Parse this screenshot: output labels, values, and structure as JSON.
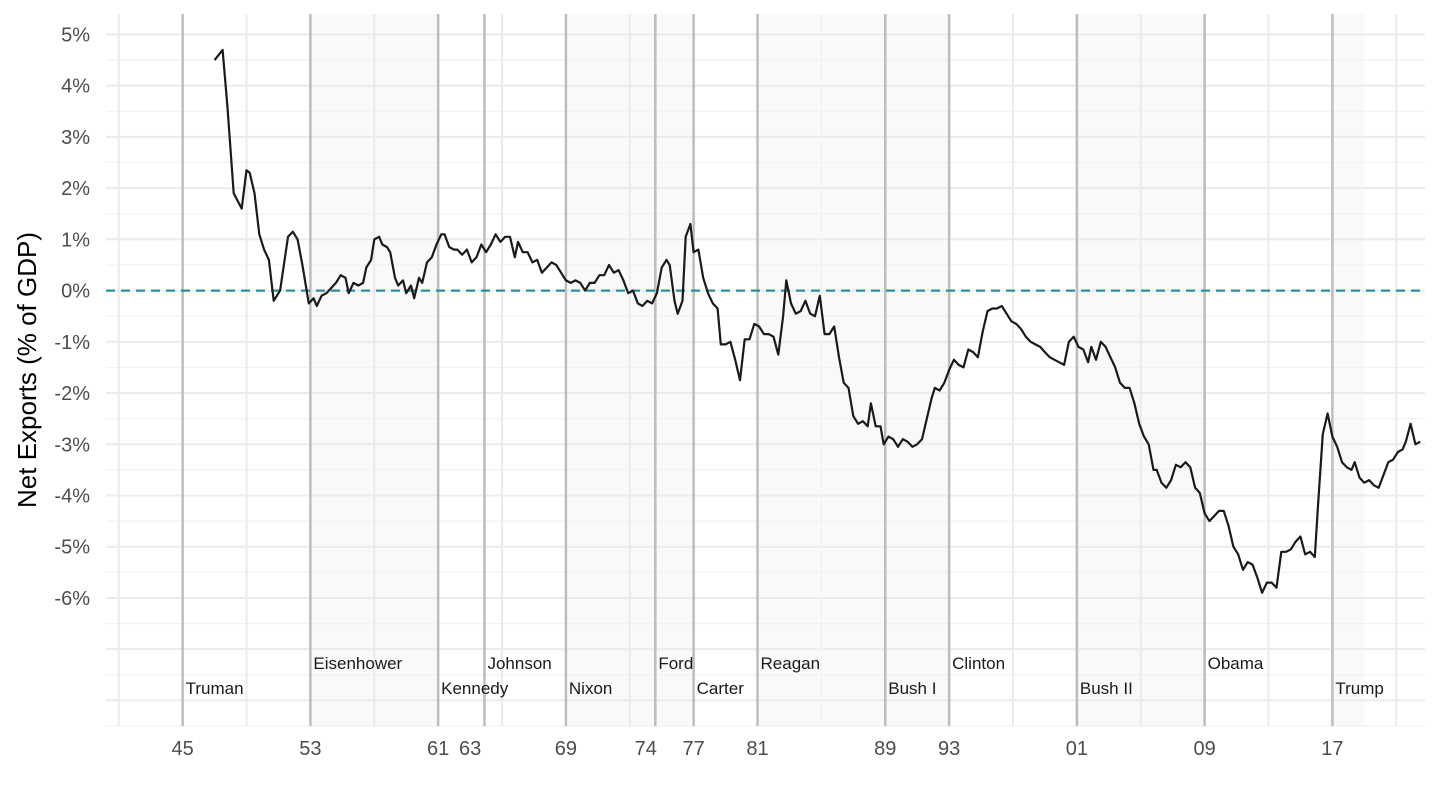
{
  "chart_data": {
    "type": "line",
    "title": "",
    "xlabel": "",
    "ylabel": "Net Exports (% of GDP)",
    "ylim": [
      -8.5,
      5.4
    ],
    "xlim": [
      1940.2,
      2022.8
    ],
    "y_ticks": [
      5,
      4,
      3,
      2,
      1,
      0,
      -1,
      -2,
      -3,
      -4,
      -5,
      -6
    ],
    "y_tick_labels": [
      "5%",
      "4%",
      "3%",
      "2%",
      "1%",
      "0%",
      "-1%",
      "-2%",
      "-3%",
      "-4%",
      "-5%",
      "-6%"
    ],
    "x_ticks": [
      1945,
      1953,
      1961,
      1963,
      1969,
      1974,
      1977,
      1981,
      1989,
      1993,
      2001,
      2009,
      2017
    ],
    "x_tick_labels": [
      "45",
      "53",
      "61",
      "63",
      "69",
      "74",
      "77",
      "81",
      "89",
      "93",
      "01",
      "09",
      "17"
    ],
    "reference_line": {
      "y": 0,
      "style": "dashed",
      "color": "#2a9296"
    },
    "grid": true,
    "presidencies": [
      {
        "name": "Truman",
        "start": 1945.0,
        "end": 1953.0,
        "shaded": false,
        "label_row": "low"
      },
      {
        "name": "Eisenhower",
        "start": 1953.0,
        "end": 1961.0,
        "shaded": true,
        "label_row": "high"
      },
      {
        "name": "Kennedy",
        "start": 1961.0,
        "end": 1963.9,
        "shaded": false,
        "label_row": "low"
      },
      {
        "name": "Johnson",
        "start": 1963.9,
        "end": 1969.0,
        "shaded": false,
        "label_row": "high"
      },
      {
        "name": "Nixon",
        "start": 1969.0,
        "end": 1974.6,
        "shaded": true,
        "label_row": "low"
      },
      {
        "name": "Ford",
        "start": 1974.6,
        "end": 1977.0,
        "shaded": true,
        "label_row": "high"
      },
      {
        "name": "Carter",
        "start": 1977.0,
        "end": 1981.0,
        "shaded": false,
        "label_row": "low"
      },
      {
        "name": "Reagan",
        "start": 1981.0,
        "end": 1989.0,
        "shaded": true,
        "label_row": "high"
      },
      {
        "name": "Bush I",
        "start": 1989.0,
        "end": 1993.0,
        "shaded": true,
        "label_row": "low"
      },
      {
        "name": "Clinton",
        "start": 1993.0,
        "end": 2001.0,
        "shaded": false,
        "label_row": "high"
      },
      {
        "name": "Bush II",
        "start": 2001.0,
        "end": 2009.0,
        "shaded": true,
        "label_row": "low"
      },
      {
        "name": "Obama",
        "start": 2009.0,
        "end": 2017.0,
        "shaded": false,
        "label_row": "high"
      },
      {
        "name": "Trump",
        "start": 2017.0,
        "end": 2019.0,
        "shaded": true,
        "label_row": "low"
      }
    ],
    "series": [
      {
        "color": "#1a1a1a",
        "points": [
          [
            1947.0,
            4.5
          ],
          [
            1947.5,
            4.7
          ],
          [
            1947.8,
            3.6
          ],
          [
            1948.2,
            1.9
          ],
          [
            1948.7,
            1.6
          ],
          [
            1949.0,
            2.35
          ],
          [
            1949.2,
            2.3
          ],
          [
            1949.5,
            1.9
          ],
          [
            1949.8,
            1.1
          ],
          [
            1950.1,
            0.8
          ],
          [
            1950.4,
            0.6
          ],
          [
            1950.7,
            -0.2
          ],
          [
            1951.1,
            0.0
          ],
          [
            1951.6,
            1.05
          ],
          [
            1951.9,
            1.15
          ],
          [
            1952.2,
            1.0
          ],
          [
            1952.5,
            0.5
          ],
          [
            1952.9,
            -0.25
          ],
          [
            1953.2,
            -0.15
          ],
          [
            1953.4,
            -0.3
          ],
          [
            1953.7,
            -0.1
          ],
          [
            1954.0,
            -0.05
          ],
          [
            1954.3,
            0.05
          ],
          [
            1954.6,
            0.15
          ],
          [
            1954.9,
            0.3
          ],
          [
            1955.2,
            0.25
          ],
          [
            1955.4,
            -0.05
          ],
          [
            1955.7,
            0.15
          ],
          [
            1956.0,
            0.1
          ],
          [
            1956.3,
            0.15
          ],
          [
            1956.5,
            0.45
          ],
          [
            1956.8,
            0.6
          ],
          [
            1957.0,
            1.0
          ],
          [
            1957.3,
            1.05
          ],
          [
            1957.5,
            0.9
          ],
          [
            1957.8,
            0.85
          ],
          [
            1958.0,
            0.75
          ],
          [
            1958.3,
            0.25
          ],
          [
            1958.5,
            0.1
          ],
          [
            1958.8,
            0.2
          ],
          [
            1959.0,
            -0.05
          ],
          [
            1959.3,
            0.1
          ],
          [
            1959.5,
            -0.15
          ],
          [
            1959.8,
            0.25
          ],
          [
            1960.0,
            0.15
          ],
          [
            1960.3,
            0.55
          ],
          [
            1960.6,
            0.65
          ],
          [
            1960.9,
            0.9
          ],
          [
            1961.2,
            1.1
          ],
          [
            1961.4,
            1.1
          ],
          [
            1961.7,
            0.85
          ],
          [
            1962.0,
            0.8
          ],
          [
            1962.2,
            0.8
          ],
          [
            1962.5,
            0.7
          ],
          [
            1962.8,
            0.8
          ],
          [
            1963.1,
            0.55
          ],
          [
            1963.4,
            0.65
          ],
          [
            1963.7,
            0.9
          ],
          [
            1964.0,
            0.75
          ],
          [
            1964.3,
            0.9
          ],
          [
            1964.6,
            1.1
          ],
          [
            1964.9,
            0.95
          ],
          [
            1965.2,
            1.05
          ],
          [
            1965.5,
            1.05
          ],
          [
            1965.8,
            0.65
          ],
          [
            1966.0,
            0.95
          ],
          [
            1966.3,
            0.75
          ],
          [
            1966.6,
            0.75
          ],
          [
            1966.9,
            0.55
          ],
          [
            1967.2,
            0.6
          ],
          [
            1967.5,
            0.35
          ],
          [
            1967.8,
            0.45
          ],
          [
            1968.1,
            0.55
          ],
          [
            1968.4,
            0.5
          ],
          [
            1968.7,
            0.35
          ],
          [
            1969.0,
            0.2
          ],
          [
            1969.3,
            0.15
          ],
          [
            1969.6,
            0.2
          ],
          [
            1969.9,
            0.15
          ],
          [
            1970.2,
            0.0
          ],
          [
            1970.5,
            0.15
          ],
          [
            1970.8,
            0.15
          ],
          [
            1971.1,
            0.3
          ],
          [
            1971.4,
            0.3
          ],
          [
            1971.7,
            0.5
          ],
          [
            1972.0,
            0.35
          ],
          [
            1972.3,
            0.4
          ],
          [
            1972.6,
            0.2
          ],
          [
            1972.9,
            -0.05
          ],
          [
            1973.2,
            0.0
          ],
          [
            1973.5,
            -0.25
          ],
          [
            1973.8,
            -0.3
          ],
          [
            1974.1,
            -0.2
          ],
          [
            1974.4,
            -0.25
          ],
          [
            1974.7,
            -0.05
          ],
          [
            1975.0,
            0.45
          ],
          [
            1975.3,
            0.6
          ],
          [
            1975.5,
            0.5
          ],
          [
            1975.8,
            -0.2
          ],
          [
            1976.0,
            -0.45
          ],
          [
            1976.3,
            -0.2
          ],
          [
            1976.5,
            1.05
          ],
          [
            1976.8,
            1.3
          ],
          [
            1977.0,
            0.75
          ],
          [
            1977.3,
            0.8
          ],
          [
            1977.6,
            0.25
          ],
          [
            1977.9,
            -0.05
          ],
          [
            1978.2,
            -0.25
          ],
          [
            1978.5,
            -0.35
          ],
          [
            1978.7,
            -1.05
          ],
          [
            1979.0,
            -1.05
          ],
          [
            1979.3,
            -1.0
          ],
          [
            1979.6,
            -1.35
          ],
          [
            1979.9,
            -1.75
          ],
          [
            1980.2,
            -0.95
          ],
          [
            1980.5,
            -0.95
          ],
          [
            1980.8,
            -0.65
          ],
          [
            1981.1,
            -0.7
          ],
          [
            1981.4,
            -0.85
          ],
          [
            1981.7,
            -0.85
          ],
          [
            1982.0,
            -0.9
          ],
          [
            1982.3,
            -1.25
          ],
          [
            1982.6,
            -0.5
          ],
          [
            1982.8,
            0.2
          ],
          [
            1983.1,
            -0.25
          ],
          [
            1983.4,
            -0.45
          ],
          [
            1983.7,
            -0.4
          ],
          [
            1984.0,
            -0.2
          ],
          [
            1984.3,
            -0.45
          ],
          [
            1984.6,
            -0.5
          ],
          [
            1984.9,
            -0.1
          ],
          [
            1985.2,
            -0.85
          ],
          [
            1985.5,
            -0.85
          ],
          [
            1985.8,
            -0.7
          ],
          [
            1986.1,
            -1.3
          ],
          [
            1986.4,
            -1.8
          ],
          [
            1986.7,
            -1.9
          ],
          [
            1987.0,
            -2.45
          ],
          [
            1987.3,
            -2.6
          ],
          [
            1987.6,
            -2.55
          ],
          [
            1987.9,
            -2.65
          ],
          [
            1988.1,
            -2.2
          ],
          [
            1988.4,
            -2.65
          ],
          [
            1988.7,
            -2.65
          ],
          [
            1988.9,
            -3.0
          ],
          [
            1989.2,
            -2.85
          ],
          [
            1989.5,
            -2.9
          ],
          [
            1989.8,
            -3.05
          ],
          [
            1990.1,
            -2.9
          ],
          [
            1990.4,
            -2.95
          ],
          [
            1990.7,
            -3.05
          ],
          [
            1991.0,
            -3.0
          ],
          [
            1991.3,
            -2.9
          ],
          [
            1991.6,
            -2.5
          ],
          [
            1991.9,
            -2.1
          ],
          [
            1992.1,
            -1.9
          ],
          [
            1992.4,
            -1.95
          ],
          [
            1992.7,
            -1.8
          ],
          [
            1993.0,
            -1.55
          ],
          [
            1993.3,
            -1.35
          ],
          [
            1993.6,
            -1.45
          ],
          [
            1993.9,
            -1.5
          ],
          [
            1994.2,
            -1.15
          ],
          [
            1994.5,
            -1.2
          ],
          [
            1994.8,
            -1.3
          ],
          [
            1995.1,
            -0.8
          ],
          [
            1995.4,
            -0.4
          ],
          [
            1995.7,
            -0.35
          ],
          [
            1996.0,
            -0.35
          ],
          [
            1996.3,
            -0.3
          ],
          [
            1996.6,
            -0.45
          ],
          [
            1996.9,
            -0.6
          ],
          [
            1997.2,
            -0.65
          ],
          [
            1997.5,
            -0.75
          ],
          [
            1997.8,
            -0.9
          ],
          [
            1998.1,
            -1.0
          ],
          [
            1998.4,
            -1.05
          ],
          [
            1998.7,
            -1.1
          ],
          [
            1999.0,
            -1.2
          ],
          [
            1999.3,
            -1.3
          ],
          [
            1999.6,
            -1.35
          ],
          [
            1999.9,
            -1.4
          ],
          [
            2000.2,
            -1.45
          ],
          [
            2000.5,
            -1.0
          ],
          [
            2000.8,
            -0.9
          ],
          [
            2001.1,
            -1.1
          ],
          [
            2001.4,
            -1.15
          ],
          [
            2001.7,
            -1.4
          ],
          [
            2001.9,
            -1.1
          ],
          [
            2002.2,
            -1.35
          ],
          [
            2002.5,
            -1.0
          ],
          [
            2002.8,
            -1.1
          ],
          [
            2003.1,
            -1.3
          ],
          [
            2003.4,
            -1.5
          ],
          [
            2003.7,
            -1.8
          ],
          [
            2004.0,
            -1.9
          ],
          [
            2004.3,
            -1.9
          ],
          [
            2004.6,
            -2.2
          ],
          [
            2004.9,
            -2.6
          ],
          [
            2005.2,
            -2.85
          ],
          [
            2005.5,
            -3.0
          ],
          [
            2005.8,
            -3.5
          ],
          [
            2006.0,
            -3.5
          ],
          [
            2006.3,
            -3.75
          ],
          [
            2006.6,
            -3.85
          ],
          [
            2006.9,
            -3.7
          ],
          [
            2007.2,
            -3.4
          ],
          [
            2007.5,
            -3.45
          ],
          [
            2007.8,
            -3.35
          ],
          [
            2008.1,
            -3.45
          ],
          [
            2008.4,
            -3.85
          ],
          [
            2008.7,
            -3.95
          ],
          [
            2009.0,
            -4.35
          ],
          [
            2009.3,
            -4.5
          ],
          [
            2009.6,
            -4.4
          ],
          [
            2009.9,
            -4.3
          ],
          [
            2010.2,
            -4.3
          ],
          [
            2010.5,
            -4.6
          ],
          [
            2010.8,
            -5.0
          ],
          [
            2011.1,
            -5.15
          ],
          [
            2011.4,
            -5.45
          ],
          [
            2011.7,
            -5.3
          ],
          [
            2012.0,
            -5.35
          ],
          [
            2012.3,
            -5.6
          ],
          [
            2012.6,
            -5.9
          ],
          [
            2012.9,
            -5.7
          ],
          [
            2013.2,
            -5.7
          ],
          [
            2013.5,
            -5.8
          ],
          [
            2013.8,
            -5.1
          ],
          [
            2014.1,
            -5.1
          ],
          [
            2014.4,
            -5.05
          ],
          [
            2014.7,
            -4.9
          ],
          [
            2015.0,
            -4.8
          ],
          [
            2015.3,
            -5.15
          ],
          [
            2015.6,
            -5.1
          ],
          [
            2015.9,
            -5.2
          ],
          [
            2016.1,
            -4.2
          ],
          [
            2016.4,
            -2.8
          ],
          [
            2016.7,
            -2.4
          ],
          [
            2017.0,
            -2.85
          ],
          [
            2017.3,
            -3.05
          ],
          [
            2017.6,
            -3.35
          ],
          [
            2017.9,
            -3.45
          ],
          [
            2018.2,
            -3.5
          ],
          [
            2018.4,
            -3.35
          ],
          [
            2018.7,
            -3.65
          ],
          [
            2019.0,
            -3.75
          ],
          [
            2019.3,
            -3.7
          ],
          [
            2019.6,
            -3.8
          ],
          [
            2019.9,
            -3.85
          ],
          [
            2020.2,
            -3.6
          ],
          [
            2020.5,
            -3.35
          ],
          [
            2020.8,
            -3.3
          ],
          [
            2021.1,
            -3.15
          ],
          [
            2021.4,
            -3.1
          ],
          [
            2021.6,
            -2.95
          ],
          [
            2021.9,
            -2.6
          ],
          [
            2022.2,
            -3.0
          ],
          [
            2022.5,
            -2.95
          ]
        ]
      }
    ]
  }
}
